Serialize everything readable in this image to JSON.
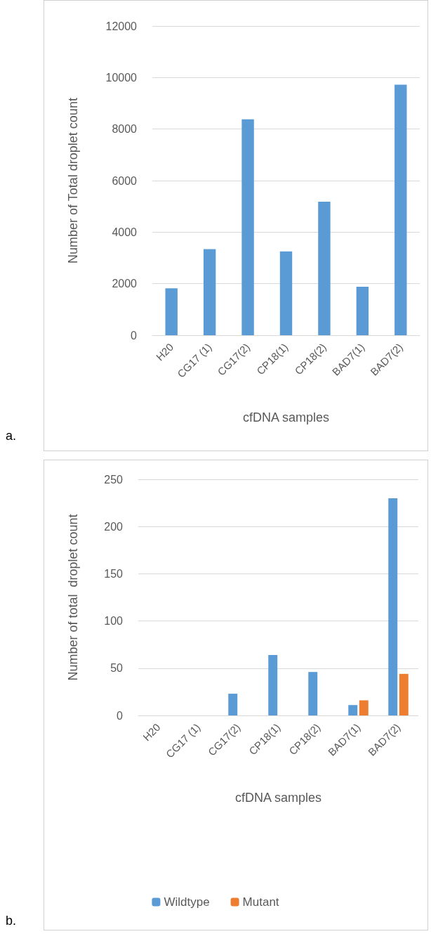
{
  "chart_data": [
    {
      "type": "bar",
      "xlabel": "cfDNA samples",
      "ylabel": "Number of Total droplet count",
      "annotations": [
        "a."
      ],
      "categories": [
        "H20",
        "CG17 (1)",
        "CG17(2)",
        "CP18(1)",
        "CP18(2)",
        "BAD7(1)",
        "BAD7(2)"
      ],
      "values": [
        1820,
        3340,
        8380,
        3250,
        5180,
        1880,
        9720
      ],
      "color": "#5b9bd5",
      "ylim": [
        0,
        12000
      ],
      "yticks": [
        0,
        2000,
        4000,
        6000,
        8000,
        10000,
        12000
      ],
      "grid": "y"
    },
    {
      "type": "bar",
      "xlabel": "cfDNA samples",
      "ylabel": "Number of total  droplet count",
      "annotations": [
        "b."
      ],
      "categories": [
        "H20",
        "CG17 (1)",
        "CG17(2)",
        "CP18(1)",
        "CP18(2)",
        "BAD7(1)",
        "BAD7(2)"
      ],
      "series": [
        {
          "name": "Wildtype",
          "color": "#5b9bd5",
          "values": [
            0,
            0,
            23,
            64,
            46,
            11,
            230
          ]
        },
        {
          "name": "Mutant",
          "color": "#ed7d31",
          "values": [
            0,
            0,
            0,
            0,
            0,
            16,
            44
          ]
        }
      ],
      "ylim": [
        0,
        250
      ],
      "yticks": [
        0,
        50,
        100,
        150,
        200,
        250
      ],
      "grid": "y",
      "legend": "bottom"
    }
  ]
}
